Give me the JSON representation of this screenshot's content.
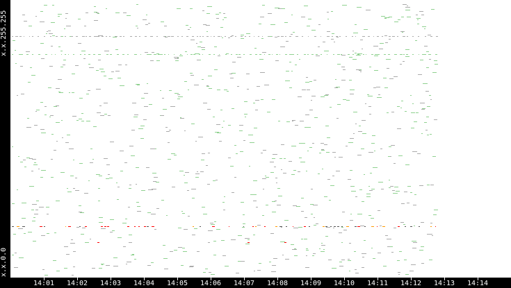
{
  "chart_data": {
    "type": "scatter",
    "y_axis": {
      "top_label": "x.x.255.255",
      "bottom_label": "x.x.0.0",
      "range": [
        0,
        255
      ]
    },
    "x_axis": {
      "range": [
        "14:00",
        "14:14:30"
      ],
      "tick_labels": [
        "14:01",
        "14:02",
        "14:03",
        "14:04",
        "14:05",
        "14:06",
        "14:07",
        "14:08",
        "14:09",
        "14:10",
        "14:11",
        "14:12",
        "14:13",
        "14:14"
      ]
    },
    "data_end": "14:12:46",
    "grid": false,
    "colors": {
      "normal": "#8fd18f",
      "dim": "#aaaaaa",
      "warn": "#ff9900",
      "alert": "#ff0000"
    },
    "dense_rows": [
      {
        "octet": 209,
        "color": "#8fd18f"
      },
      {
        "octet": 226,
        "color": "#aaaaaa"
      },
      {
        "octet": 47,
        "color": "#ff9900"
      }
    ],
    "points": [
      [
        2.5,
        249
      ],
      [
        4.5,
        240
      ],
      [
        8.2,
        239
      ],
      [
        12.6,
        252
      ],
      [
        3.2,
        187
      ],
      [
        6.4,
        176
      ],
      [
        9.1,
        150
      ],
      [
        10.5,
        120
      ],
      [
        1.8,
        95
      ],
      [
        5.2,
        88
      ],
      [
        7.3,
        140
      ],
      [
        11.2,
        178
      ],
      [
        4.1,
        60
      ],
      [
        6.9,
        70
      ],
      [
        8.8,
        35
      ],
      [
        3.6,
        20
      ],
      [
        10.1,
        15
      ],
      [
        12.3,
        28
      ],
      [
        2.1,
        40
      ],
      [
        5.7,
        110
      ],
      [
        9.8,
        200
      ],
      [
        1.3,
        160
      ],
      [
        7.8,
        98
      ],
      [
        11.9,
        85
      ],
      [
        0.9,
        220
      ],
      [
        6.1,
        195
      ],
      [
        8.4,
        30
      ],
      [
        2.7,
        12
      ],
      [
        4.9,
        25
      ],
      [
        10.8,
        55
      ],
      [
        12.0,
        140
      ],
      [
        3.9,
        130
      ],
      [
        7.0,
        165
      ],
      [
        9.4,
        75
      ],
      [
        5.5,
        45
      ],
      [
        1.6,
        8
      ]
    ],
    "alerts": [
      [
        2.9,
        47
      ],
      [
        3.5,
        47
      ],
      [
        4.0,
        47
      ],
      [
        7.1,
        32
      ],
      [
        8.2,
        32
      ],
      [
        2.6,
        32
      ],
      [
        8.8,
        47
      ],
      [
        11.6,
        47
      ]
    ]
  }
}
